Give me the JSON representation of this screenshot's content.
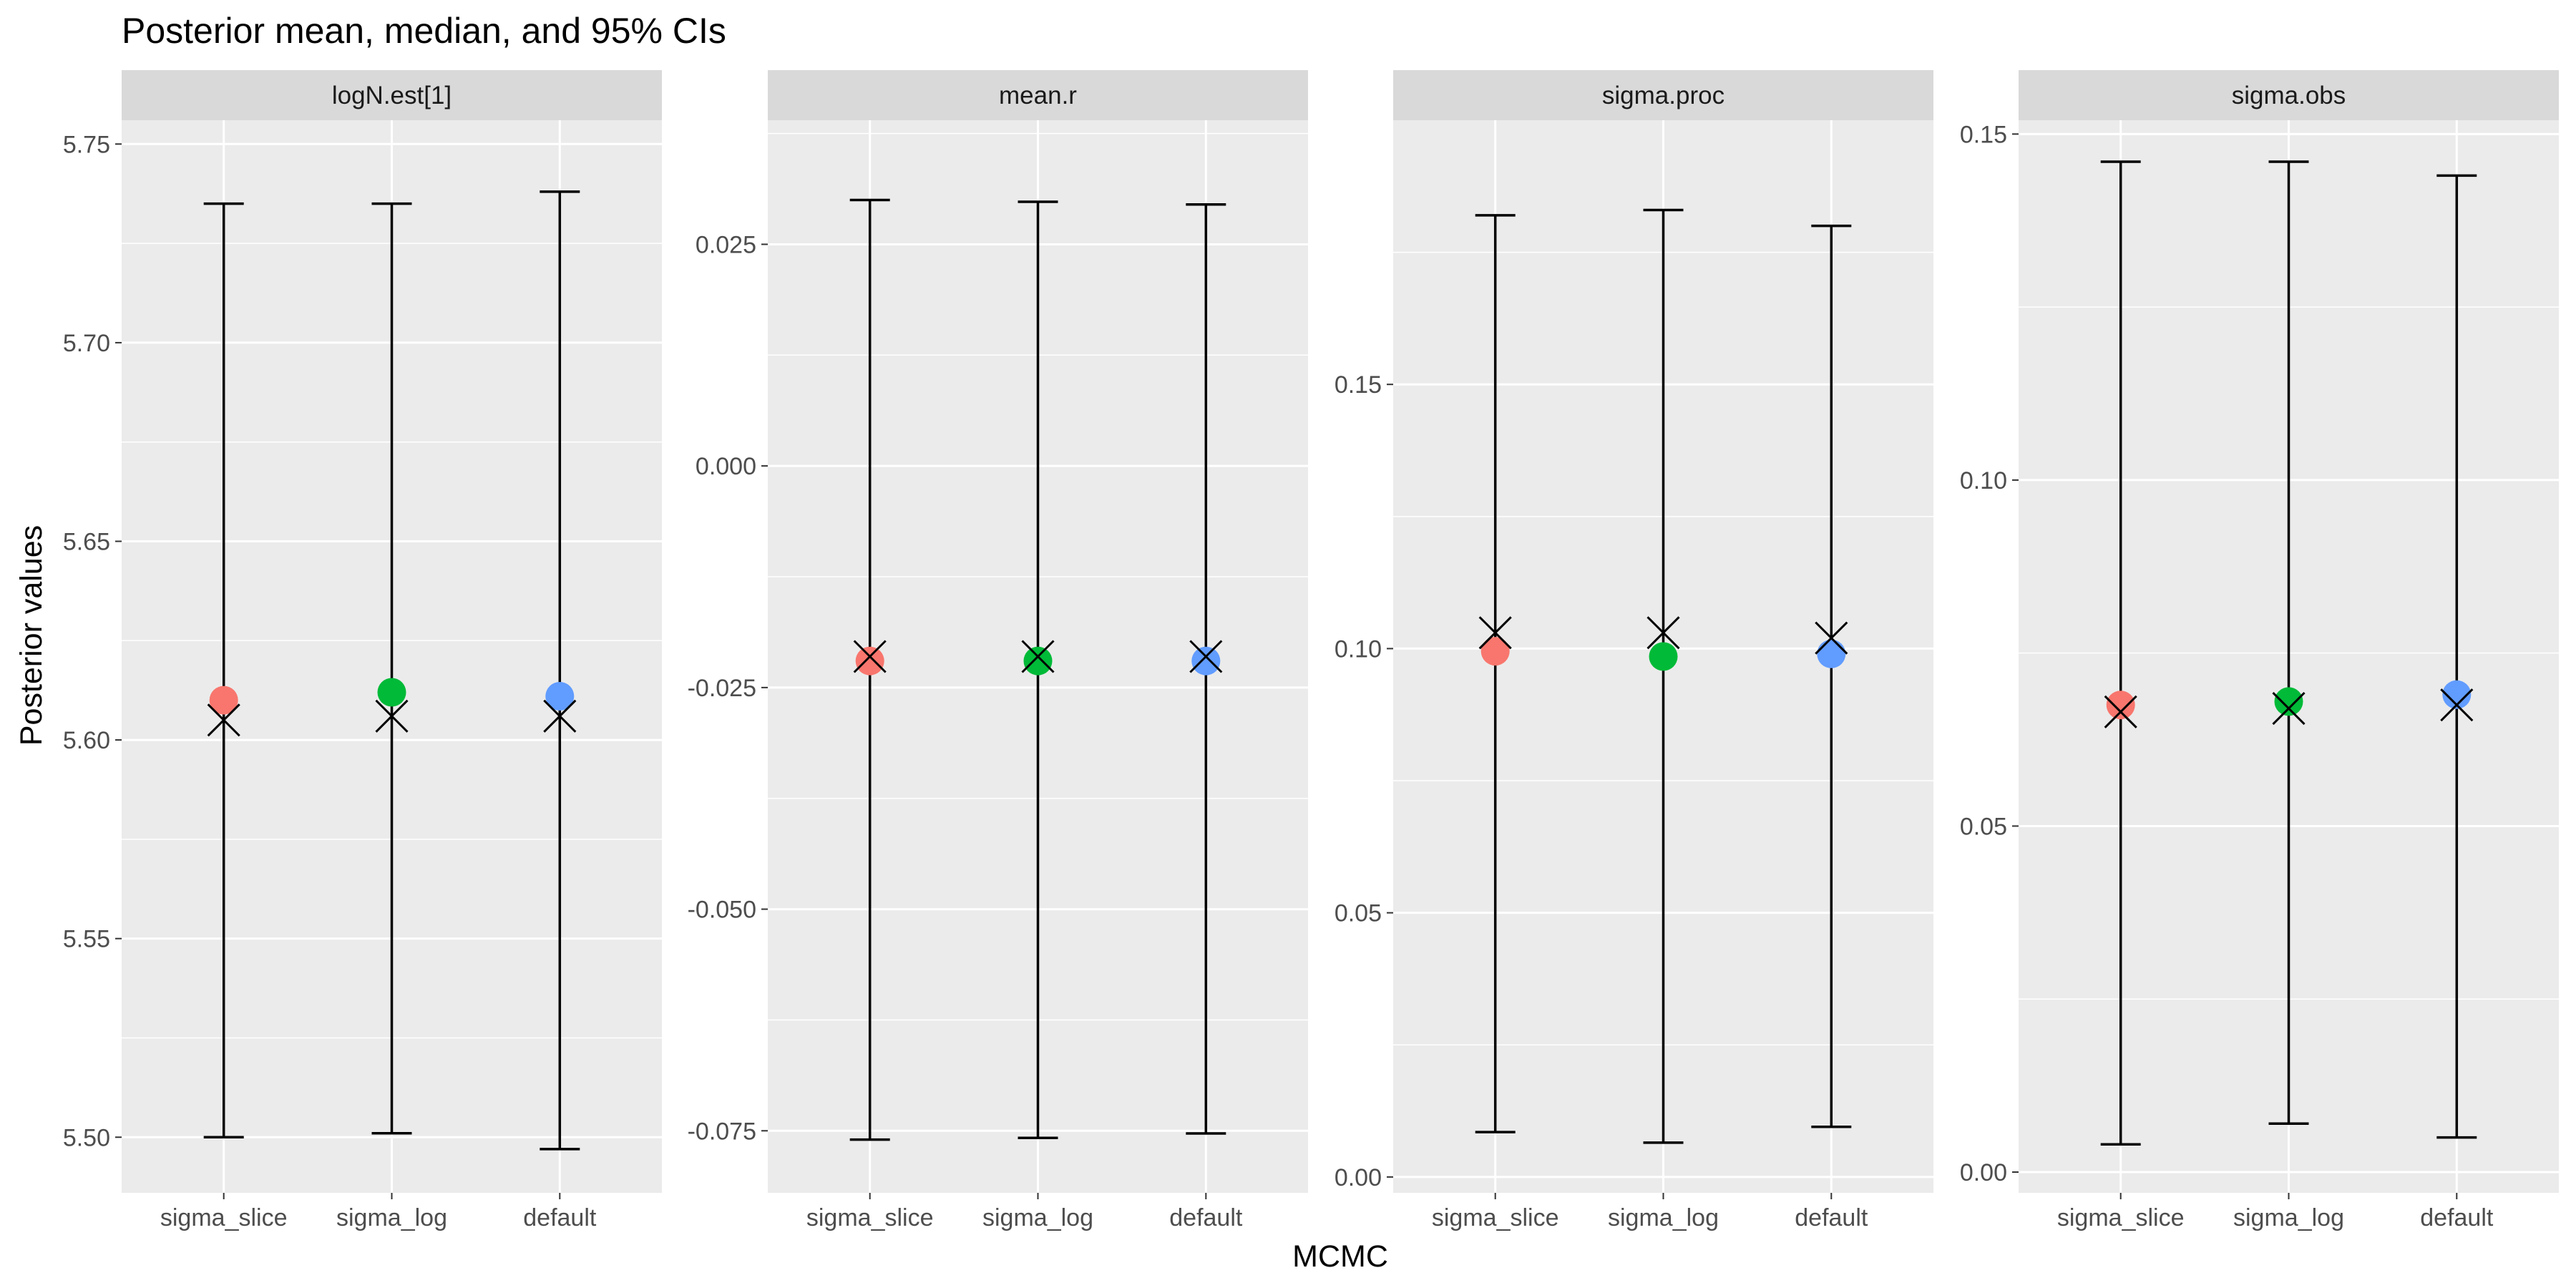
{
  "chart_data": {
    "type": "errorbar",
    "title": "Posterior mean, median, and 95% CIs",
    "xlabel": "MCMC",
    "ylabel": "Posterior values",
    "categories": [
      "sigma_slice",
      "sigma_log",
      "default"
    ],
    "colors": [
      "#F8766D",
      "#00BA38",
      "#619CFF"
    ],
    "legend": "none",
    "grid": true,
    "panels": [
      {
        "name": "logN.est[1]",
        "ylim": [
          5.486,
          5.756
        ],
        "ticks": [
          5.5,
          5.55,
          5.6,
          5.65,
          5.7,
          5.75
        ],
        "tick_labels": [
          "5.50",
          "5.55",
          "5.60",
          "5.65",
          "5.70",
          "5.75"
        ],
        "mean": [
          5.61,
          5.612,
          5.611
        ],
        "median": [
          5.605,
          5.606,
          5.606
        ],
        "lower": [
          5.5,
          5.501,
          5.497
        ],
        "upper": [
          5.735,
          5.735,
          5.738
        ]
      },
      {
        "name": "mean.r",
        "ylim": [
          -0.082,
          0.039
        ],
        "ticks": [
          -0.075,
          -0.05,
          -0.025,
          0.0,
          0.025
        ],
        "tick_labels": [
          "-0.075",
          "-0.050",
          "-0.025",
          "0.000",
          "0.025"
        ],
        "mean": [
          -0.022,
          -0.022,
          -0.022
        ],
        "median": [
          -0.0215,
          -0.0215,
          -0.0215
        ],
        "lower": [
          -0.076,
          -0.0758,
          -0.0753
        ],
        "upper": [
          0.03,
          0.0298,
          0.0295
        ]
      },
      {
        "name": "sigma.proc",
        "ylim": [
          -0.003,
          0.2
        ],
        "ticks": [
          0.0,
          0.05,
          0.1,
          0.15
        ],
        "tick_labels": [
          "0.00",
          "0.05",
          "0.10",
          "0.15"
        ],
        "mean": [
          0.0995,
          0.0985,
          0.099
        ],
        "median": [
          0.103,
          0.103,
          0.102
        ],
        "lower": [
          0.0085,
          0.0065,
          0.0095
        ],
        "upper": [
          0.182,
          0.183,
          0.18
        ]
      },
      {
        "name": "sigma.obs",
        "ylim": [
          -0.003,
          0.152
        ],
        "ticks": [
          0.0,
          0.05,
          0.1,
          0.15
        ],
        "tick_labels": [
          "0.00",
          "0.05",
          "0.10",
          "0.15"
        ],
        "mean": [
          0.0675,
          0.068,
          0.069
        ],
        "median": [
          0.0665,
          0.067,
          0.0675
        ],
        "lower": [
          0.004,
          0.007,
          0.005
        ],
        "upper": [
          0.146,
          0.146,
          0.144
        ]
      }
    ]
  }
}
